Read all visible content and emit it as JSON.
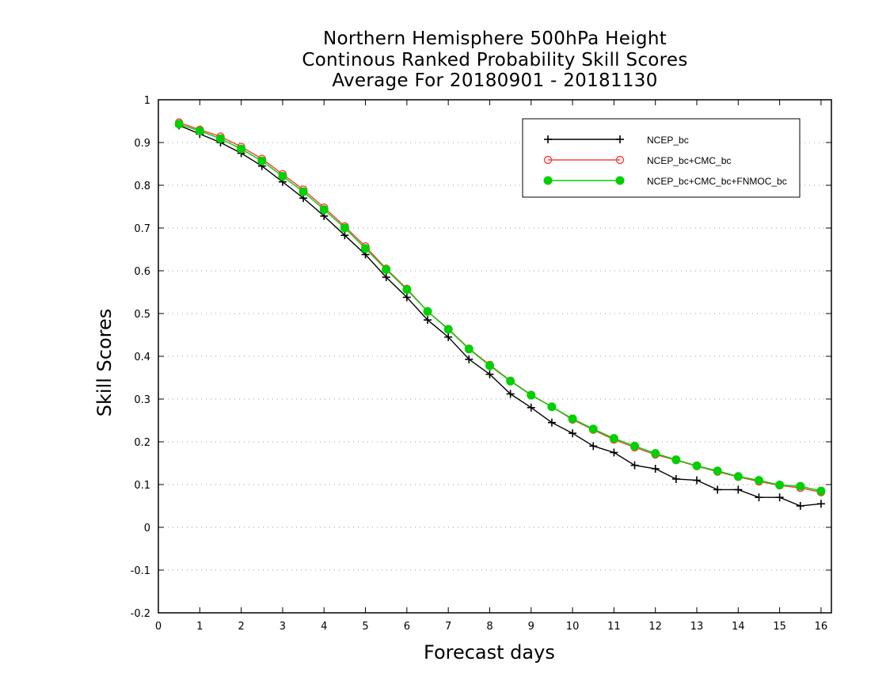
{
  "chart_data": {
    "type": "line",
    "title": [
      "Northern Hemisphere 500hPa Height",
      "Continous Ranked Probability Skill Scores",
      "Average For 20180901 - 20181130"
    ],
    "xlabel": "Forecast days",
    "ylabel": "Skill Scores",
    "xlim": [
      0,
      16.25
    ],
    "ylim": [
      -0.2,
      1
    ],
    "xticks": [
      0,
      1,
      2,
      3,
      4,
      5,
      6,
      7,
      8,
      9,
      10,
      11,
      12,
      13,
      14,
      15,
      16
    ],
    "yticks": [
      -0.2,
      -0.1,
      0,
      0.1,
      0.2,
      0.3,
      0.4,
      0.5,
      0.6,
      0.7,
      0.8,
      0.9,
      1
    ],
    "ytick_labels": [
      "-0.2",
      "-0.1",
      "0",
      "0.1",
      "0.2",
      "0.3",
      "0.4",
      "0.5",
      "0.6",
      "0.7",
      "0.8",
      "0.9",
      "1"
    ],
    "grid": true,
    "legend_position": "top-right",
    "x": [
      0.5,
      1,
      1.5,
      2,
      2.5,
      3,
      3.5,
      4,
      4.5,
      5,
      5.5,
      6,
      6.5,
      7,
      7.5,
      8,
      8.5,
      9,
      9.5,
      10,
      10.5,
      11,
      11.5,
      12,
      12.5,
      13,
      13.5,
      14,
      14.5,
      15,
      15.5,
      16
    ],
    "series": [
      {
        "name": "NCEP_bc",
        "color": "#000000",
        "marker": "plus",
        "values": [
          0.94,
          0.92,
          0.9,
          0.875,
          0.845,
          0.808,
          0.77,
          0.728,
          0.683,
          0.638,
          0.585,
          0.538,
          0.485,
          0.445,
          0.393,
          0.358,
          0.312,
          0.28,
          0.245,
          0.22,
          0.19,
          0.175,
          0.145,
          0.137,
          0.113,
          0.11,
          0.088,
          0.088,
          0.07,
          0.07,
          0.05,
          0.055
        ]
      },
      {
        "name": "NCEP_bc+CMC_bc",
        "color": "#ff4040",
        "marker": "open-circle",
        "values": [
          0.947,
          0.93,
          0.914,
          0.89,
          0.862,
          0.826,
          0.79,
          0.748,
          0.704,
          0.657,
          0.605,
          0.558,
          0.505,
          0.464,
          0.418,
          0.38,
          0.343,
          0.31,
          0.282,
          0.252,
          0.228,
          0.205,
          0.187,
          0.17,
          0.157,
          0.143,
          0.13,
          0.118,
          0.107,
          0.098,
          0.092,
          0.082
        ]
      },
      {
        "name": "NCEP_bc+CMC_bc+FNMOC_bc",
        "color": "#00d000",
        "marker": "filled-circle",
        "values": [
          0.943,
          0.927,
          0.909,
          0.885,
          0.857,
          0.821,
          0.785,
          0.743,
          0.7,
          0.652,
          0.603,
          0.556,
          0.505,
          0.463,
          0.417,
          0.378,
          0.342,
          0.309,
          0.282,
          0.254,
          0.23,
          0.208,
          0.19,
          0.173,
          0.158,
          0.144,
          0.132,
          0.119,
          0.11,
          0.099,
          0.096,
          0.085
        ]
      }
    ]
  }
}
